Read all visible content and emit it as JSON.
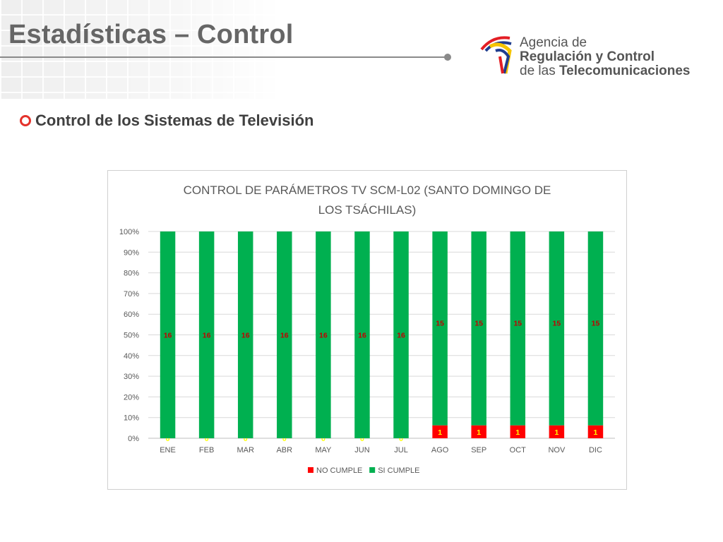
{
  "slide": {
    "title": "Estadísticas – Control",
    "section_heading": "Control de los Sistemas de Televisión"
  },
  "logo": {
    "line1": "Agencia de",
    "line2": "Regulación y Control",
    "line3_prefix": "de las ",
    "line3_bold": "Telecomunicaciones"
  },
  "chart_data": {
    "type": "bar",
    "stacking": "percent",
    "title_lines": [
      "CONTROL DE PARÁMETROS TV SCM-L02 (SANTO DOMINGO DE",
      "LOS TSÁCHILAS)"
    ],
    "categories": [
      "ENE",
      "FEB",
      "MAR",
      "ABR",
      "MAY",
      "JUN",
      "JUL",
      "AGO",
      "SEP",
      "OCT",
      "NOV",
      "DIC"
    ],
    "series": [
      {
        "name": "NO CUMPLE",
        "color": "#ff0000",
        "label_color": "#ffff00",
        "values": [
          0,
          0,
          0,
          0,
          0,
          0,
          0,
          1,
          1,
          1,
          1,
          1
        ]
      },
      {
        "name": "SI CUMPLE",
        "color": "#00b050",
        "label_color": "#c00000",
        "values": [
          16,
          16,
          16,
          16,
          16,
          16,
          16,
          15,
          15,
          15,
          15,
          15
        ]
      }
    ],
    "y_ticks": [
      "0%",
      "10%",
      "20%",
      "30%",
      "40%",
      "50%",
      "60%",
      "70%",
      "80%",
      "90%",
      "100%"
    ],
    "ylim": [
      0,
      100
    ],
    "grid": true,
    "legend_position": "bottom"
  }
}
